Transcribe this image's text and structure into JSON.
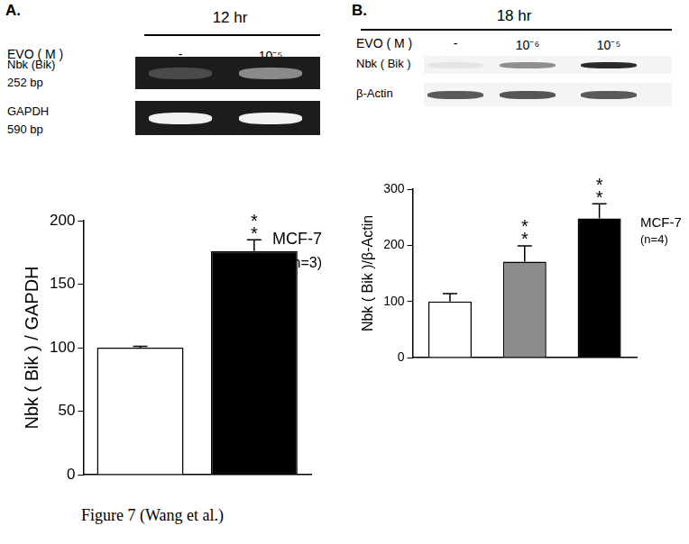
{
  "chart_data": [
    {
      "type": "bar",
      "panel": "A.",
      "time": "12 hr",
      "treatment_label": "EVO ( M )",
      "conditions": [
        "-",
        "10⁻⁵"
      ],
      "blots": [
        {
          "name": "Nbk (Bik)",
          "size": "252 bp"
        },
        {
          "name": "GAPDH",
          "size": "590 bp"
        }
      ],
      "y_label": "Nbk ( Bik ) / GAPDH",
      "categories": [
        null,
        null
      ],
      "values": [
        100,
        176
      ],
      "errors": [
        1,
        9
      ],
      "significance": [
        null,
        "**"
      ],
      "annotations": [
        "MCF-7",
        "(n=3)"
      ],
      "colors": [
        "#ffffff",
        "#000000"
      ],
      "ylim": [
        0,
        200
      ],
      "yticks": [
        0,
        50,
        100,
        150,
        200
      ],
      "tick_labels": "y",
      "grid": false
    },
    {
      "type": "bar",
      "panel": "B.",
      "time": "18 hr",
      "treatment_label": "EVO ( M )",
      "conditions": [
        "-",
        "10⁻⁶",
        "10⁻⁵"
      ],
      "blots": [
        {
          "name": "Nbk ( Bik )"
        },
        {
          "name": "β-Actin"
        }
      ],
      "y_label": "Nbk ( Bik )/β-Actin",
      "categories": [
        null,
        null,
        null
      ],
      "values": [
        100,
        171,
        248
      ],
      "errors": [
        14,
        28,
        26
      ],
      "significance": [
        null,
        "**",
        "**"
      ],
      "annotations": [
        "MCF-7",
        "(n=4)"
      ],
      "colors": [
        "#ffffff",
        "#8c8c8c",
        "#000000"
      ],
      "ylim": [
        0,
        300
      ],
      "yticks": [
        0,
        100,
        200,
        300
      ],
      "tick_labels": "y",
      "grid": false
    }
  ],
  "caption": "Figure 7 (Wang et al.)"
}
